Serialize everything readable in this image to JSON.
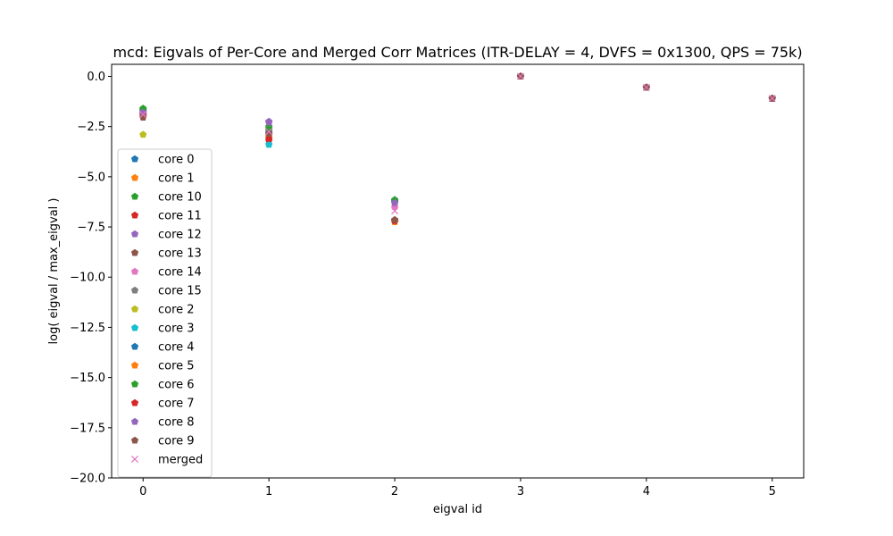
{
  "chart_data": {
    "type": "scatter",
    "title": "mcd: Eigvals of Per-Core and Merged Corr Matrices (ITR-DELAY = 4, DVFS = 0x1300, QPS = 75k)",
    "xlabel": "eigval id",
    "ylabel": "log( eigval / max_eigval )",
    "xlim": [
      -0.25,
      5.25
    ],
    "ylim": [
      -20,
      0.6
    ],
    "xticks": [
      0,
      1,
      2,
      3,
      4,
      5
    ],
    "yticks": [
      -20.0,
      -17.5,
      -15.0,
      -12.5,
      -10.0,
      -7.5,
      -5.0,
      -2.5,
      0.0
    ],
    "xtick_labels": [
      "0",
      "1",
      "2",
      "3",
      "4",
      "5"
    ],
    "ytick_labels": [
      "−20.0",
      "−17.5",
      "−15.0",
      "−12.5",
      "−10.0",
      "−7.5",
      "−5.0",
      "−2.5",
      "0.0"
    ],
    "grid": false,
    "legend_position": "center-left",
    "x": [
      0,
      1,
      2,
      3,
      4,
      5
    ],
    "series": [
      {
        "name": "core 0",
        "marker": "pentagon",
        "color": "#1f77b4",
        "values": [
          -1.7,
          -2.7,
          -6.2,
          0.0,
          -0.55,
          -1.1
        ]
      },
      {
        "name": "core 1",
        "marker": "pentagon",
        "color": "#ff7f0e",
        "values": [
          -1.9,
          -2.9,
          -7.25,
          0.0,
          -0.55,
          -1.1
        ]
      },
      {
        "name": "core 10",
        "marker": "pentagon",
        "color": "#2ca02c",
        "values": [
          -1.6,
          -2.5,
          -6.15,
          0.0,
          -0.55,
          -1.1
        ]
      },
      {
        "name": "core 11",
        "marker": "pentagon",
        "color": "#d62728",
        "values": [
          -1.85,
          -3.2,
          -7.2,
          0.0,
          -0.55,
          -1.1
        ]
      },
      {
        "name": "core 12",
        "marker": "pentagon",
        "color": "#9467bd",
        "values": [
          -1.75,
          -2.25,
          -6.3,
          0.0,
          -0.55,
          -1.1
        ]
      },
      {
        "name": "core 13",
        "marker": "pentagon",
        "color": "#8c564b",
        "values": [
          -2.0,
          -2.9,
          -7.15,
          0.0,
          -0.55,
          -1.1
        ]
      },
      {
        "name": "core 14",
        "marker": "pentagon",
        "color": "#e377c2",
        "values": [
          -1.8,
          -2.6,
          -6.5,
          0.0,
          -0.55,
          -1.1
        ]
      },
      {
        "name": "core 15",
        "marker": "pentagon",
        "color": "#7f7f7f",
        "values": [
          -1.9,
          -2.7,
          -6.3,
          0.0,
          -0.55,
          -1.1
        ]
      },
      {
        "name": "core 2",
        "marker": "pentagon",
        "color": "#bcbd22",
        "values": [
          -2.9,
          -2.8,
          -7.2,
          0.0,
          -0.55,
          -1.1
        ]
      },
      {
        "name": "core 3",
        "marker": "pentagon",
        "color": "#17becf",
        "values": [
          -1.8,
          -3.4,
          -6.2,
          0.0,
          -0.55,
          -1.1
        ]
      },
      {
        "name": "core 4",
        "marker": "pentagon",
        "color": "#1f77b4",
        "values": [
          -1.7,
          -2.8,
          -6.25,
          0.0,
          -0.55,
          -1.1
        ]
      },
      {
        "name": "core 5",
        "marker": "pentagon",
        "color": "#ff7f0e",
        "values": [
          -1.95,
          -3.0,
          -7.25,
          0.0,
          -0.55,
          -1.1
        ]
      },
      {
        "name": "core 6",
        "marker": "pentagon",
        "color": "#2ca02c",
        "values": [
          -1.65,
          -2.6,
          -6.2,
          0.0,
          -0.55,
          -1.1
        ]
      },
      {
        "name": "core 7",
        "marker": "pentagon",
        "color": "#d62728",
        "values": [
          -1.9,
          -3.1,
          -7.2,
          0.0,
          -0.55,
          -1.1
        ]
      },
      {
        "name": "core 8",
        "marker": "pentagon",
        "color": "#9467bd",
        "values": [
          -1.8,
          -2.3,
          -6.3,
          0.0,
          -0.55,
          -1.1
        ]
      },
      {
        "name": "core 9",
        "marker": "pentagon",
        "color": "#8c564b",
        "values": [
          -2.05,
          -2.85,
          -7.15,
          0.0,
          -0.55,
          -1.1
        ]
      },
      {
        "name": "merged",
        "marker": "x",
        "color": "#e377c2",
        "values": [
          -1.9,
          -2.75,
          -6.7,
          0.0,
          -0.55,
          -1.1
        ]
      }
    ]
  }
}
